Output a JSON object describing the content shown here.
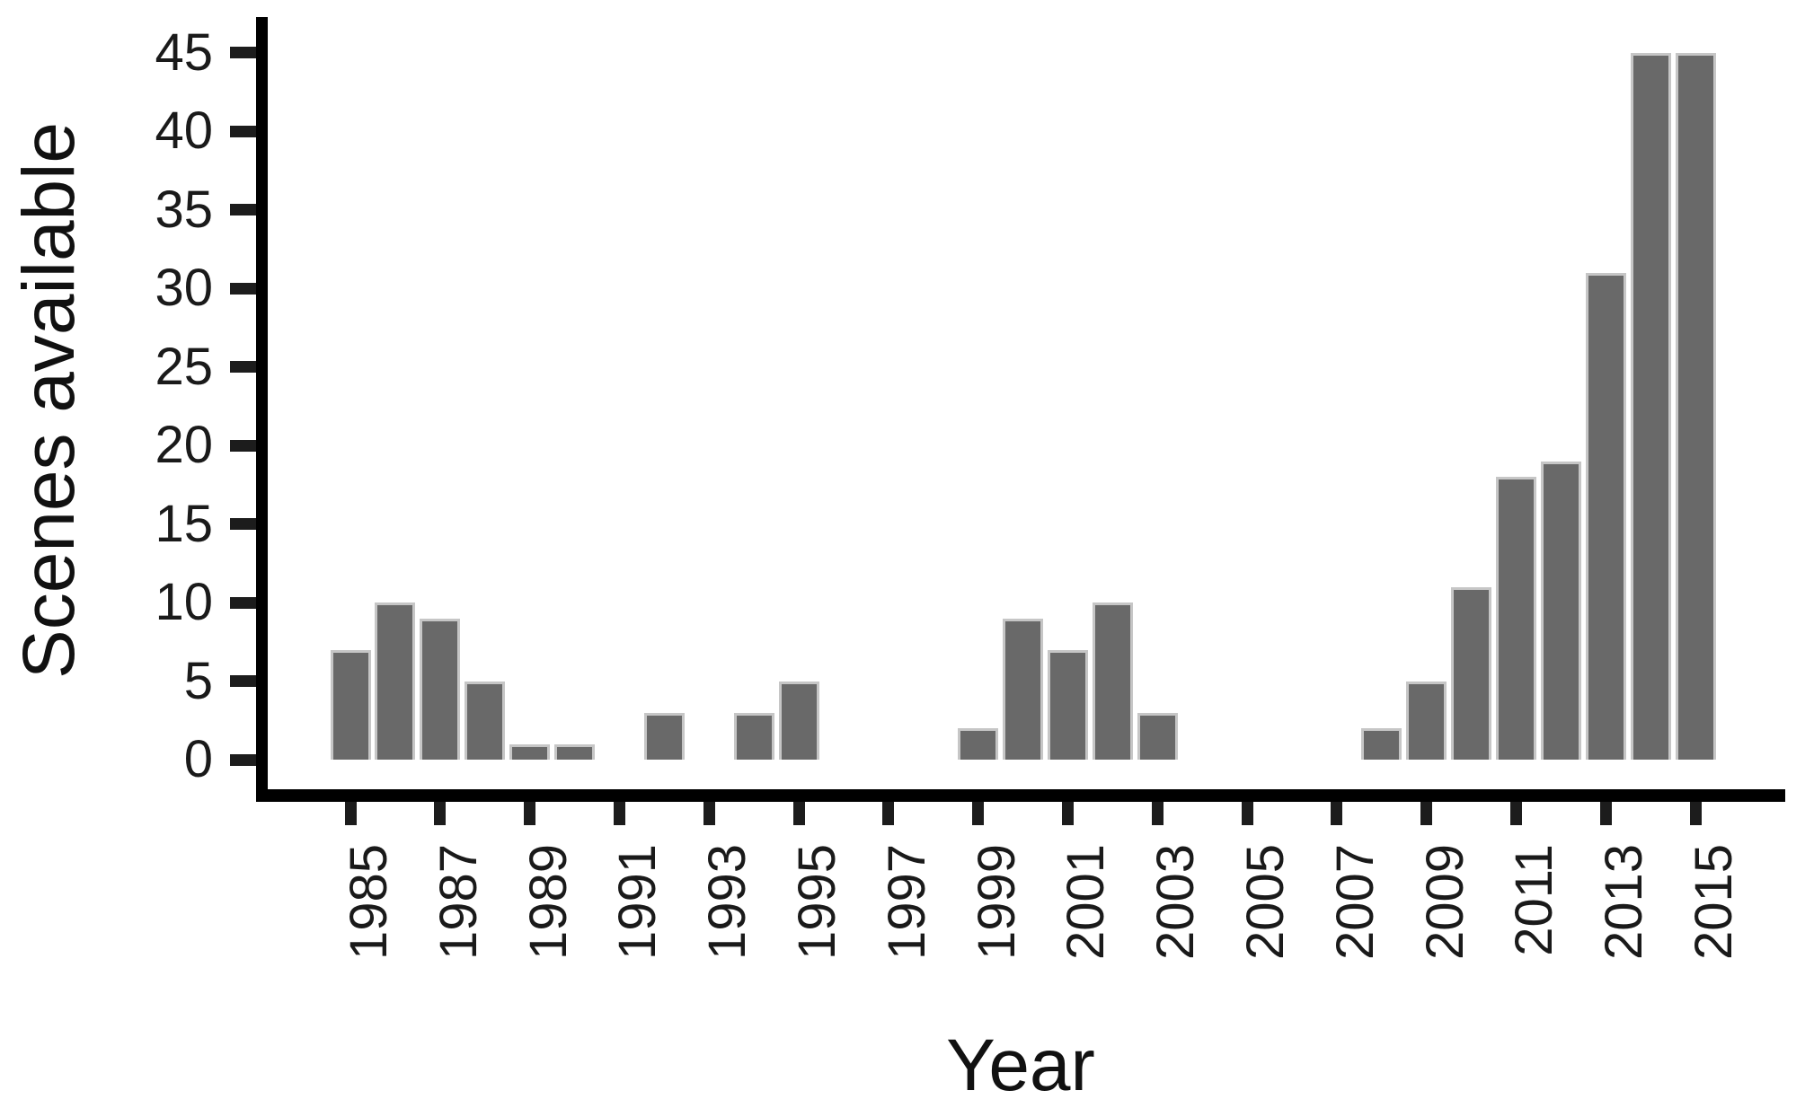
{
  "chart_data": {
    "type": "bar",
    "title": "",
    "xlabel": "Year",
    "ylabel": "Scenes available",
    "ylim": [
      0,
      45
    ],
    "grid": false,
    "legend": null,
    "y_ticks": [
      0,
      5,
      10,
      15,
      20,
      25,
      30,
      35,
      40,
      45
    ],
    "x_tick_labels": [
      "1985",
      "1987",
      "1989",
      "1991",
      "1993",
      "1995",
      "1997",
      "1999",
      "2001",
      "2003",
      "2005",
      "2007",
      "2009",
      "2011",
      "2013",
      "2015"
    ],
    "categories": [
      1985,
      1986,
      1987,
      1988,
      1989,
      1990,
      1991,
      1992,
      1993,
      1994,
      1995,
      1996,
      1997,
      1998,
      1999,
      2000,
      2001,
      2002,
      2003,
      2004,
      2005,
      2006,
      2007,
      2008,
      2009,
      2010,
      2011,
      2012,
      2013,
      2014,
      2015
    ],
    "values": [
      7,
      10,
      9,
      5,
      1,
      1,
      0,
      3,
      0,
      3,
      5,
      0,
      0,
      0,
      2,
      9,
      7,
      10,
      3,
      0,
      0,
      0,
      0,
      2,
      5,
      11,
      18,
      19,
      31,
      45,
      45
    ],
    "colors": {
      "bar_fill": "#696969",
      "bar_edge": "#c6c6c6",
      "axis": "#000000",
      "text": "#1a1a1a",
      "background": "#ffffff"
    }
  }
}
